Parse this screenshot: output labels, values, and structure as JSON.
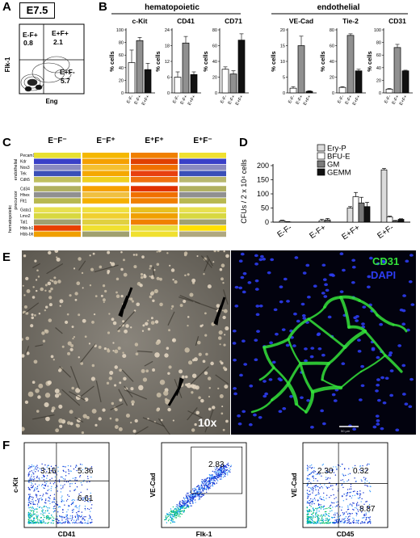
{
  "panels": {
    "A": {
      "letter": "A",
      "stage": "E7.5",
      "ylabel": "Flk-1",
      "xlabel": "Eng",
      "gates": [
        {
          "name": "E-F+",
          "value": "0.8"
        },
        {
          "name": "E+F+",
          "value": "2.1"
        },
        {
          "name": "E+F-",
          "value": "5.7"
        }
      ]
    },
    "B": {
      "letter": "B",
      "groups": [
        "hematopoietic",
        "endothelial"
      ],
      "ylabel": "% cells",
      "categories": [
        "E-F-",
        "E-F+",
        "E+F+",
        "E+F-"
      ]
    },
    "C": {
      "letter": "C",
      "columns": [
        "E⁻F⁻",
        "E⁻F⁺",
        "E⁺F⁺",
        "E⁺F⁻"
      ],
      "groups": [
        "endothelial",
        "precursor",
        "hematopoietic"
      ],
      "genes": [
        "Pecam1",
        "Kdr",
        "Nos3",
        "Tek",
        "Cdh5",
        "Cd34",
        "Hhex",
        "Flt1",
        "Gata1",
        "Lmo2",
        "Tal1",
        "Hbb-b1",
        "Hbb-bh1"
      ]
    },
    "D": {
      "letter": "D",
      "ylabel": "CFUs / 2 x 10⁴ cells",
      "legend": [
        "Ery-P",
        "BFU-E",
        "GM",
        "GEMM"
      ],
      "legend_colors": [
        "#dcdcdc",
        "#ffffff",
        "#7a7a7a",
        "#111111"
      ]
    },
    "E": {
      "letter": "E",
      "magnification": "10x",
      "stain1": "CD31",
      "stain2": "DAPI",
      "scale_text": "50 µm",
      "colors": {
        "cd31": "#34e23a",
        "dapi": "#2c3cf0"
      }
    },
    "F": {
      "letter": "F",
      "plots": [
        {
          "xlabel": "CD41",
          "ylabel": "c-Kit",
          "values": [
            "3.16",
            "5.36",
            "6.61"
          ]
        },
        {
          "xlabel": "Flk-1",
          "ylabel": "VE-Cad",
          "values": [
            "2.83"
          ]
        },
        {
          "xlabel": "CD45",
          "ylabel": "VE-Cad",
          "values": [
            "2.30",
            "0.32",
            "8.87"
          ]
        }
      ]
    }
  },
  "chart_data": [
    {
      "type": "bar",
      "title": "c-Kit",
      "ylabel": "% cells",
      "categories": [
        "E-F-",
        "E-F+",
        "E+F+",
        "E+F-"
      ],
      "values": [
        48,
        83,
        37,
        0
      ],
      "errors": [
        20,
        5,
        10,
        0
      ],
      "ylim": [
        0,
        100
      ],
      "yticks": [
        0,
        20,
        40,
        60,
        80,
        100
      ]
    },
    {
      "type": "bar",
      "title": "CD41",
      "ylabel": "% cells",
      "categories": [
        "E-F-",
        "E-F+",
        "E+F+",
        "E+F-"
      ],
      "values": [
        6,
        19,
        7,
        0
      ],
      "errors": [
        2,
        2.5,
        1,
        0
      ],
      "ylim": [
        0,
        24
      ],
      "yticks": [
        0,
        6,
        12,
        18,
        24
      ]
    },
    {
      "type": "bar",
      "title": "CD71",
      "ylabel": "% cells",
      "categories": [
        "E-F-",
        "E-F+",
        "E+F+",
        "E+F-"
      ],
      "values": [
        30,
        24,
        67,
        0
      ],
      "errors": [
        3,
        4,
        8,
        0
      ],
      "ylim": [
        0,
        80
      ],
      "yticks": [
        0,
        20,
        40,
        60,
        80
      ]
    },
    {
      "type": "bar",
      "title": "VE-Cad",
      "ylabel": "% cells",
      "categories": [
        "E-F-",
        "E-F+",
        "E+F+",
        "E+F-"
      ],
      "values": [
        1.5,
        15,
        0.5,
        0
      ],
      "errors": [
        0.5,
        3,
        0.2,
        0
      ],
      "ylim": [
        0,
        20
      ],
      "yticks": [
        0,
        5,
        10,
        15,
        20
      ]
    },
    {
      "type": "bar",
      "title": "Tie-2",
      "ylabel": "% cells",
      "categories": [
        "E-F-",
        "E-F+",
        "E+F+",
        "E+F-"
      ],
      "values": [
        7,
        73,
        28,
        0
      ],
      "errors": [
        1,
        2,
        2,
        0
      ],
      "ylim": [
        0,
        80
      ],
      "yticks": [
        0,
        20,
        40,
        60,
        80
      ]
    },
    {
      "type": "bar",
      "title": "CD31",
      "ylabel": "% cells",
      "categories": [
        "E-F-",
        "E-F+",
        "E+F+",
        "E+F-"
      ],
      "values": [
        6,
        72,
        35,
        0
      ],
      "errors": [
        1,
        5,
        1,
        0
      ],
      "ylim": [
        0,
        100
      ],
      "yticks": [
        0,
        20,
        40,
        60,
        80,
        100
      ]
    },
    {
      "type": "heatmap",
      "columns": [
        "E⁻F⁻",
        "E⁻F⁺",
        "E⁺F⁺",
        "E⁺F⁻"
      ],
      "rows": [
        "Pecam1",
        "Kdr",
        "Nos3",
        "Tek",
        "Cdh5",
        "Cd34",
        "Hhex",
        "Flt1",
        "Gata1",
        "Lmo2",
        "Tal1",
        "Hbb-b1",
        "Hbb-bh1"
      ],
      "colors": [
        [
          "#e8e030",
          "#f5b800",
          "#f08000",
          "#f0e030"
        ],
        [
          "#3a40c8",
          "#f5a000",
          "#e04000",
          "#3a40c8"
        ],
        [
          "#8a8ac0",
          "#f5c030",
          "#f07000",
          "#8a8ac0"
        ],
        [
          "#3a50b8",
          "#f5a800",
          "#e84010",
          "#3a50b8"
        ],
        [
          "#c0c060",
          "#f0d020",
          "#f07010",
          "#b8b870"
        ],
        [
          "#b0b060",
          "#f5a000",
          "#e03000",
          "#b0b060"
        ],
        [
          "#909090",
          "#f0c040",
          "#f07000",
          "#909090"
        ],
        [
          "#b8b850",
          "#f5b000",
          "#f08000",
          "#b8b850"
        ],
        [
          "#e8e050",
          "#f0e040",
          "#e8c020",
          "#e8e050"
        ],
        [
          "#d8d840",
          "#f0d030",
          "#f0a000",
          "#d8d840"
        ],
        [
          "#a0a070",
          "#e0d040",
          "#f08000",
          "#a0a070"
        ],
        [
          "#e84000",
          "#f0e030",
          "#e8e040",
          "#ffe000"
        ],
        [
          "#f0a000",
          "#a0a070",
          "#f0e030",
          "#b0a880"
        ]
      ]
    },
    {
      "type": "bar",
      "ylabel": "CFUs / 2 x 10⁴ cells",
      "categories": [
        "E-F-",
        "E-F+",
        "E+F+",
        "E+F-"
      ],
      "ylim": [
        0,
        200
      ],
      "yticks": [
        0,
        50,
        100,
        150,
        200
      ],
      "series": [
        {
          "name": "Ery-P",
          "values": [
            5,
            0,
            50,
            185
          ],
          "errors": [
            2,
            0,
            5,
            5
          ]
        },
        {
          "name": "BFU-E",
          "values": [
            1,
            5,
            90,
            18
          ],
          "errors": [
            1,
            5,
            15,
            3
          ]
        },
        {
          "name": "GM",
          "values": [
            0,
            8,
            68,
            4
          ],
          "errors": [
            0,
            5,
            20,
            2
          ]
        },
        {
          "name": "GEMM",
          "values": [
            0,
            0,
            55,
            10
          ],
          "errors": [
            0,
            0,
            15,
            2
          ]
        }
      ]
    }
  ]
}
